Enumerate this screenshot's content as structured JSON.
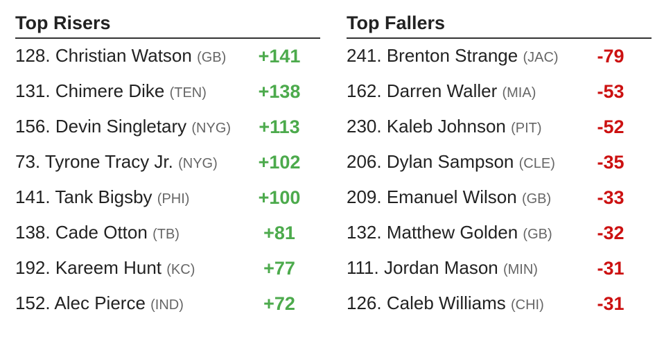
{
  "risers": {
    "title": "Top Risers",
    "rows": [
      {
        "rank": "128.",
        "name": "Christian Watson",
        "team": "(GB)",
        "change": "+141"
      },
      {
        "rank": "131.",
        "name": "Chimere Dike",
        "team": "(TEN)",
        "change": "+138"
      },
      {
        "rank": "156.",
        "name": "Devin Singletary",
        "team": "(NYG)",
        "change": "+113"
      },
      {
        "rank": "73.",
        "name": "Tyrone Tracy Jr.",
        "team": "(NYG)",
        "change": "+102"
      },
      {
        "rank": "141.",
        "name": "Tank Bigsby",
        "team": "(PHI)",
        "change": "+100"
      },
      {
        "rank": "138.",
        "name": "Cade Otton",
        "team": "(TB)",
        "change": "+81"
      },
      {
        "rank": "192.",
        "name": "Kareem Hunt",
        "team": "(KC)",
        "change": "+77"
      },
      {
        "rank": "152.",
        "name": "Alec Pierce",
        "team": "(IND)",
        "change": "+72"
      }
    ]
  },
  "fallers": {
    "title": "Top Fallers",
    "rows": [
      {
        "rank": "241.",
        "name": "Brenton Strange",
        "team": "(JAC)",
        "change": "-79"
      },
      {
        "rank": "162.",
        "name": "Darren Waller",
        "team": "(MIA)",
        "change": "-53"
      },
      {
        "rank": "230.",
        "name": "Kaleb Johnson",
        "team": "(PIT)",
        "change": "-52"
      },
      {
        "rank": "206.",
        "name": "Dylan Sampson",
        "team": "(CLE)",
        "change": "-35"
      },
      {
        "rank": "209.",
        "name": "Emanuel Wilson",
        "team": "(GB)",
        "change": "-33"
      },
      {
        "rank": "132.",
        "name": "Matthew Golden",
        "team": "(GB)",
        "change": "-32"
      },
      {
        "rank": "111.",
        "name": "Jordan Mason",
        "team": "(MIN)",
        "change": "-31"
      },
      {
        "rank": "126.",
        "name": "Caleb Williams",
        "team": "(CHI)",
        "change": "-31"
      }
    ]
  }
}
